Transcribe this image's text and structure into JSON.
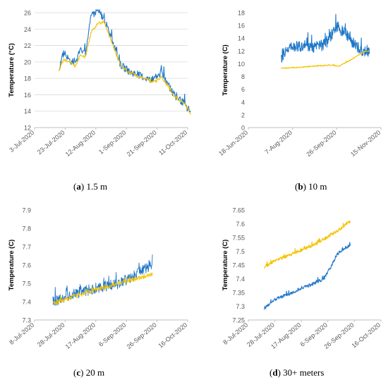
{
  "chart_data": [
    {
      "type": "line",
      "caption_letter": "a",
      "caption_text": "1.5 m",
      "ylabel": "Temperature (°C)",
      "ylim": [
        12,
        26
      ],
      "yticks": [
        "12",
        "14",
        "16",
        "18",
        "20",
        "22",
        "24",
        "26"
      ],
      "xticks": [
        "3-Jul-2020",
        "23-Jul-2020",
        "12-Aug-2020",
        "1-Sep-2020",
        "21-Sep-2020",
        "11-Oct-2020"
      ],
      "grid": true,
      "series": [
        {
          "color": "#1f77c8",
          "x": [
            "2020-07-19",
            "2020-07-22",
            "2020-07-25",
            "2020-07-30",
            "2020-08-02",
            "2020-08-05",
            "2020-08-09",
            "2020-08-13",
            "2020-08-17",
            "2020-08-22",
            "2020-08-28",
            "2020-09-03",
            "2020-09-08",
            "2020-09-13",
            "2020-09-17",
            "2020-09-21",
            "2020-09-24",
            "2020-09-28",
            "2020-10-02",
            "2020-10-06",
            "2020-10-09",
            "2020-10-13"
          ],
          "y": [
            19.2,
            21.2,
            20.3,
            19.8,
            21.6,
            21.0,
            25.5,
            26.3,
            25.4,
            23.1,
            19.7,
            18.8,
            18.5,
            18.1,
            17.8,
            17.9,
            18.9,
            17.2,
            16.0,
            15.4,
            14.9,
            13.7
          ]
        },
        {
          "color": "#f5c200",
          "x": [
            "2020-07-19",
            "2020-07-22",
            "2020-07-25",
            "2020-07-30",
            "2020-08-02",
            "2020-08-05",
            "2020-08-09",
            "2020-08-13",
            "2020-08-17",
            "2020-08-22",
            "2020-08-28",
            "2020-09-03",
            "2020-09-08",
            "2020-09-13",
            "2020-09-17",
            "2020-09-21",
            "2020-09-24",
            "2020-09-28",
            "2020-10-02",
            "2020-10-06",
            "2020-10-09",
            "2020-10-13"
          ],
          "y": [
            19.0,
            20.3,
            20.0,
            19.5,
            21.0,
            20.5,
            23.6,
            24.6,
            24.9,
            22.6,
            19.6,
            18.7,
            18.3,
            18.0,
            17.6,
            17.7,
            18.2,
            17.0,
            15.9,
            15.3,
            14.8,
            13.6
          ]
        }
      ]
    },
    {
      "type": "line",
      "caption_letter": "b",
      "caption_text": "10 m",
      "ylabel": "Temperature (C)",
      "ylim": [
        0,
        18
      ],
      "yticks": [
        "0",
        "2",
        "4",
        "6",
        "8",
        "10",
        "12",
        "14",
        "16",
        "18"
      ],
      "xticks": [
        "18-Jun-2020",
        "7-Aug-2020",
        "26-Sep-2020",
        "15-Nov-2020"
      ],
      "grid": false,
      "series": [
        {
          "color": "#1f77c8",
          "x": [
            "2020-07-25",
            "2020-08-05",
            "2020-08-15",
            "2020-08-25",
            "2020-09-05",
            "2020-09-15",
            "2020-09-22",
            "2020-09-27",
            "2020-10-05",
            "2020-10-15",
            "2020-10-25",
            "2020-11-02"
          ],
          "y": [
            11.0,
            12.5,
            12.8,
            12.6,
            12.7,
            13.2,
            14.8,
            15.8,
            14.8,
            13.2,
            12.1,
            12.0
          ]
        },
        {
          "color": "#f5c200",
          "x": [
            "2020-07-25",
            "2020-08-10",
            "2020-08-30",
            "2020-09-20",
            "2020-09-28",
            "2020-10-08",
            "2020-10-20",
            "2020-10-28",
            "2020-11-02"
          ],
          "y": [
            9.3,
            9.4,
            9.6,
            9.8,
            9.6,
            10.3,
            11.3,
            11.9,
            12.0
          ]
        }
      ]
    },
    {
      "type": "line",
      "caption_letter": "c",
      "caption_text": "20 m",
      "ylabel": "Temperature (C)",
      "ylim": [
        7.3,
        7.9
      ],
      "yticks": [
        "7.3",
        "7.4",
        "7.5",
        "7.6",
        "7.7",
        "7.8",
        "7.9"
      ],
      "xticks": [
        "8-Jul-2020",
        "28-Jul-2020",
        "17-Aug-2020",
        "6-Sep-2020",
        "26-Sep-2020",
        "16-Oct-2020"
      ],
      "grid": false,
      "series": [
        {
          "color": "#1f77c8",
          "x": [
            "2020-07-20",
            "2020-08-01",
            "2020-08-15",
            "2020-09-01",
            "2020-09-10",
            "2020-09-18",
            "2020-09-23"
          ],
          "y": [
            7.4,
            7.44,
            7.47,
            7.5,
            7.53,
            7.58,
            7.6
          ]
        },
        {
          "color": "#f5c200",
          "x": [
            "2020-07-20",
            "2020-08-01",
            "2020-08-15",
            "2020-09-01",
            "2020-09-15",
            "2020-09-23"
          ],
          "y": [
            7.39,
            7.42,
            7.46,
            7.5,
            7.53,
            7.55
          ]
        }
      ]
    },
    {
      "type": "line",
      "caption_letter": "d",
      "caption_text": "30+ meters",
      "ylabel": "Temperature (C)",
      "ylim": [
        7.25,
        7.65
      ],
      "yticks": [
        "7.25",
        "7.3",
        "7.35",
        "7.4",
        "7.45",
        "7.5",
        "7.55",
        "7.6",
        "7.65"
      ],
      "xticks": [
        "8-Jul-2020",
        "28-Jul-2020",
        "17-Aug-2020",
        "6-Sep-2020",
        "26-Sep-2020",
        "16-Oct-2020"
      ],
      "grid": false,
      "series": [
        {
          "color": "#1f77c8",
          "x": [
            "2020-07-20",
            "2020-07-26",
            "2020-08-05",
            "2020-08-15",
            "2020-08-25",
            "2020-09-03",
            "2020-09-08",
            "2020-09-13",
            "2020-09-18",
            "2020-09-23"
          ],
          "y": [
            7.29,
            7.32,
            7.34,
            7.36,
            7.38,
            7.4,
            7.44,
            7.49,
            7.51,
            7.52
          ]
        },
        {
          "color": "#f5c200",
          "x": [
            "2020-07-20",
            "2020-07-26",
            "2020-08-05",
            "2020-08-15",
            "2020-08-25",
            "2020-09-05",
            "2020-09-15",
            "2020-09-23"
          ],
          "y": [
            7.44,
            7.46,
            7.48,
            7.5,
            7.52,
            7.55,
            7.58,
            7.61
          ]
        }
      ]
    }
  ]
}
